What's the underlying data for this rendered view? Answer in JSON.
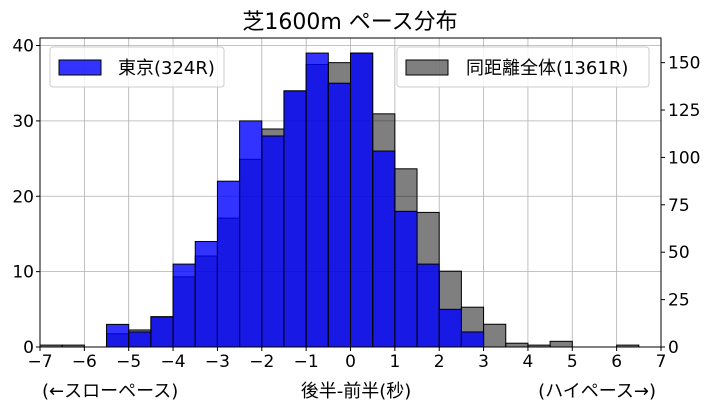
{
  "chart_data": {
    "type": "bar",
    "title": "芝1600m ペース分布",
    "xlabel": "後半-前半(秒)",
    "xlabel_left": "(←スローペース)",
    "xlabel_right": "(ハイペース→)",
    "xlim": [
      -7,
      7
    ],
    "xticks": [
      -7,
      -6,
      -5,
      -4,
      -3,
      -2,
      -1,
      0,
      1,
      2,
      3,
      4,
      5,
      6,
      7
    ],
    "bin_width": 0.5,
    "bin_starts": [
      -7.0,
      -6.5,
      -6.0,
      -5.5,
      -5.0,
      -4.5,
      -4.0,
      -3.5,
      -3.0,
      -2.5,
      -2.0,
      -1.5,
      -1.0,
      -0.5,
      0.0,
      0.5,
      1.0,
      1.5,
      2.0,
      2.5,
      3.0,
      3.5,
      4.0,
      4.5,
      5.0,
      5.5,
      6.0,
      6.5
    ],
    "y_left": {
      "lim": [
        0,
        41
      ],
      "ticks": [
        0,
        10,
        20,
        30,
        40
      ]
    },
    "y_right": {
      "lim": [
        0,
        163
      ],
      "ticks": [
        0,
        25,
        50,
        75,
        100,
        125,
        150
      ]
    },
    "grid": true,
    "series": [
      {
        "name": "東京(324R)",
        "axis": "left",
        "color": "#0000ff",
        "opacity": 0.8,
        "values": [
          0,
          0,
          0,
          3,
          2,
          4,
          11,
          14,
          22,
          30,
          28,
          34,
          39,
          35,
          39,
          26,
          18,
          11,
          5,
          2,
          0,
          0,
          0,
          0,
          0,
          0,
          0,
          0
        ],
        "legend_position": "upper-left"
      },
      {
        "name": "同距離全体(1361R)",
        "axis": "right",
        "color": "#000000",
        "opacity": 0.5,
        "values": [
          1,
          1,
          0,
          7,
          9,
          16,
          37,
          48,
          68,
          99,
          115,
          135,
          149,
          150,
          155,
          123,
          94,
          71,
          40,
          21,
          12,
          2,
          1,
          3,
          0,
          0,
          1,
          0
        ],
        "legend_position": "upper-right"
      }
    ]
  }
}
